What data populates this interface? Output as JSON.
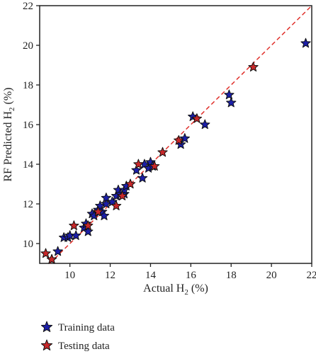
{
  "chart_data": {
    "type": "scatter",
    "title": "",
    "xlabel": {
      "main": "Actual H",
      "sub": "2",
      "tail": " (%)"
    },
    "ylabel": {
      "main": "RF Predicted H",
      "sub": "2",
      "tail": " (%)"
    },
    "xlim": [
      8.5,
      22
    ],
    "ylim": [
      9,
      22
    ],
    "xticks": [
      10,
      12,
      14,
      16,
      18,
      20,
      22
    ],
    "yticks": [
      10,
      12,
      14,
      16,
      18,
      20,
      22
    ],
    "grid": false,
    "legend_position": "below",
    "reference_line": {
      "from": [
        9,
        9
      ],
      "to": [
        22,
        22
      ],
      "style": "dashed",
      "color": "#e0302b"
    },
    "series": [
      {
        "name": "Training data",
        "color": "#1c1fa8",
        "marker": "star",
        "points": [
          [
            9.1,
            9.2
          ],
          [
            9.4,
            9.6
          ],
          [
            9.7,
            10.3
          ],
          [
            9.9,
            10.3
          ],
          [
            10.0,
            10.4
          ],
          [
            10.3,
            10.4
          ],
          [
            10.7,
            10.8
          ],
          [
            10.8,
            11.0
          ],
          [
            10.9,
            10.6
          ],
          [
            11.1,
            11.5
          ],
          [
            11.2,
            11.4
          ],
          [
            11.4,
            11.7
          ],
          [
            11.5,
            11.9
          ],
          [
            11.6,
            11.6
          ],
          [
            11.7,
            11.4
          ],
          [
            11.8,
            12.0
          ],
          [
            11.8,
            12.3
          ],
          [
            12.1,
            12.1
          ],
          [
            12.3,
            12.4
          ],
          [
            12.4,
            12.7
          ],
          [
            12.5,
            12.5
          ],
          [
            12.7,
            12.5
          ],
          [
            12.7,
            12.7
          ],
          [
            12.8,
            12.9
          ],
          [
            13.3,
            13.7
          ],
          [
            13.6,
            13.3
          ],
          [
            13.7,
            14.0
          ],
          [
            13.9,
            13.8
          ],
          [
            14.0,
            14.1
          ],
          [
            14.1,
            13.9
          ],
          [
            15.5,
            15.0
          ],
          [
            15.7,
            15.3
          ],
          [
            16.1,
            16.4
          ],
          [
            16.7,
            16.0
          ],
          [
            17.9,
            17.5
          ],
          [
            18.0,
            17.1
          ],
          [
            21.7,
            20.1
          ]
        ]
      },
      {
        "name": "Testing data",
        "color": "#c8282a",
        "marker": "star",
        "points": [
          [
            8.8,
            9.5
          ],
          [
            9.1,
            9.2
          ],
          [
            10.2,
            10.9
          ],
          [
            10.9,
            10.9
          ],
          [
            11.4,
            11.6
          ],
          [
            12.3,
            11.9
          ],
          [
            12.6,
            12.4
          ],
          [
            13.0,
            13.0
          ],
          [
            13.4,
            14.0
          ],
          [
            14.2,
            13.9
          ],
          [
            14.6,
            14.6
          ],
          [
            15.4,
            15.2
          ],
          [
            16.3,
            16.3
          ],
          [
            19.1,
            18.9
          ]
        ]
      }
    ]
  }
}
